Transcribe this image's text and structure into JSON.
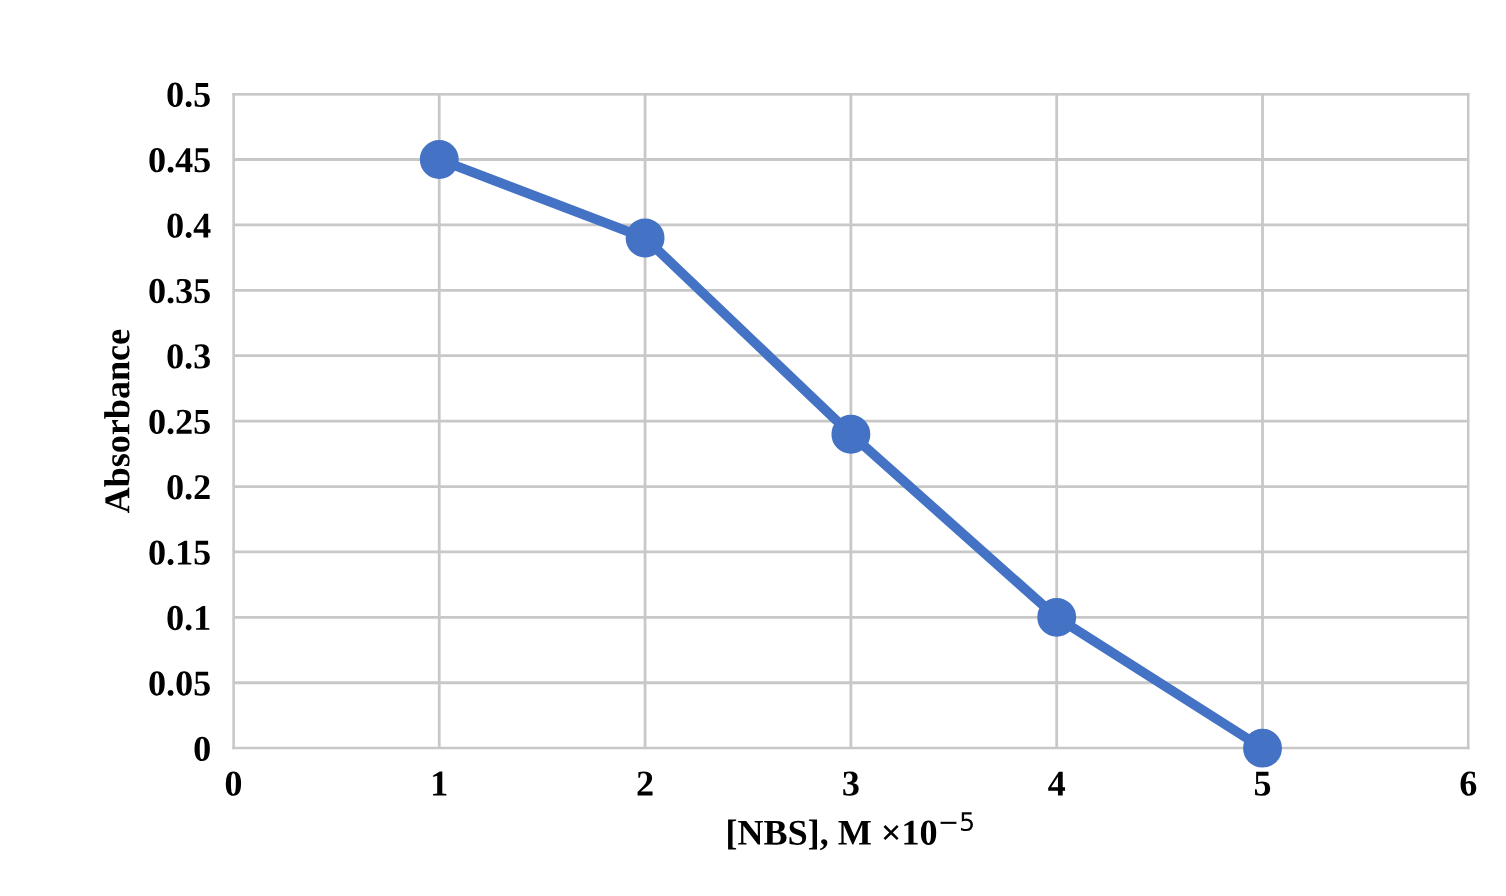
{
  "chart_data": {
    "type": "line",
    "xlabel": "[NBS], M ×10$^{−5}$",
    "ylabel": "Absorbance",
    "x": [
      1,
      2,
      3,
      4,
      5
    ],
    "series": [
      {
        "color": "#4472c4",
        "values": [
          0.45,
          0.39,
          0.24,
          0.1,
          0.0
        ]
      }
    ],
    "xlim": [
      0,
      6
    ],
    "xticks": [
      0,
      1,
      2,
      3,
      4,
      5,
      6
    ],
    "ylim": [
      0,
      0.5
    ],
    "yticks": [
      0,
      0.05,
      0.1,
      0.15,
      0.2,
      0.25,
      0.3,
      0.35,
      0.4,
      0.45,
      0.5
    ],
    "grid": true,
    "marker": "circle",
    "line_style": "solid"
  }
}
